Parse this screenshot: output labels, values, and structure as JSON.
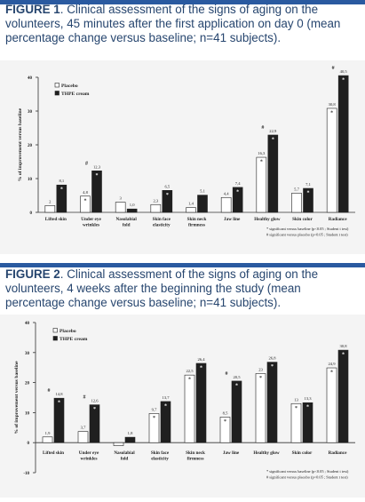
{
  "figures": [
    {
      "label": "FIGURE 1",
      "title": ". Clinical assessment of the signs of aging on the volunteers, 45 minutes after the first application on day 0 (mean percentage change versus baseline; n=41 subjects).",
      "footnotes": [
        "* significant versus baseline (p<0.05 ; Student t test)",
        "# significant versus placebo (p<0.05 ; Student t test)"
      ]
    },
    {
      "label": "FIGURE 2",
      "title": ". Clinical assessment of the signs of aging on the volunteers, 4 weeks after the beginning the study (mean percentage change versus baseline; n=41 subjects).",
      "footnotes": [
        "* significant versus baseline (p<0.05 ; Student t test)",
        "# significant versus placebo (p<0.05 ; Student t test)"
      ]
    }
  ],
  "chart_data": [
    {
      "type": "bar",
      "ylabel": "% of improvement versus baseline",
      "ylim": [
        0,
        40
      ],
      "yticks": [
        0,
        10,
        20,
        30,
        40
      ],
      "categories": [
        "Lifted skin",
        "Under eye wrinkles",
        "Nasolabial fold",
        "Skin face elasticity",
        "Skin neck firmness",
        "Jaw line",
        "Healthy glow",
        "Skin color",
        "Radiance"
      ],
      "series": [
        {
          "name": "Placebo",
          "color": "#ffffff",
          "values": [
            2,
            4.8,
            3,
            2.3,
            1.4,
            4.4,
            16.3,
            5.7,
            30.8
          ],
          "labels": [
            "2",
            "4,8",
            "3",
            "2,3",
            "1,4",
            "4,4",
            "16,3",
            "5,7",
            "30,8"
          ]
        },
        {
          "name": "THPE cream",
          "color": "#1f1f1f",
          "values": [
            8.1,
            12.3,
            1,
            6.5,
            5.1,
            7.4,
            22.9,
            7.1,
            40.5
          ],
          "labels": [
            "8,1",
            "12,3",
            "1,0",
            "6,5",
            "5,1",
            "7,4",
            "22,9",
            "7,1",
            "40,5"
          ]
        }
      ],
      "significance_placebo": [
        "",
        "*",
        "",
        "",
        "",
        "",
        "*",
        "",
        "*"
      ],
      "significance_thpe": [
        "*",
        "*",
        "",
        "*",
        "",
        "*",
        "*",
        "*",
        "*"
      ],
      "hash": [
        "",
        "#",
        "",
        "",
        "",
        "",
        "#",
        "",
        "#"
      ],
      "legend": "top-left",
      "grid": false
    },
    {
      "type": "bar",
      "ylabel": "% of improvement versus baseline",
      "ylim": [
        -10,
        40
      ],
      "yticks": [
        -10,
        0,
        10,
        20,
        30,
        40
      ],
      "categories": [
        "Lifted skin",
        "Under eye wrinkles",
        "Nasolabial fold",
        "Skin face elasticity",
        "Skin neck firmness",
        "Jaw line",
        "Healthy glow",
        "Skin color",
        "Radiance"
      ],
      "series": [
        {
          "name": "Placebo",
          "color": "#ffffff",
          "values": [
            1.9,
            3.7,
            -1,
            9.7,
            22.5,
            8.5,
            23,
            13,
            24.9
          ],
          "labels": [
            "1,9",
            "3,7",
            "",
            "9,7",
            "22,5",
            "8,5",
            "23",
            "13",
            "24,9"
          ]
        },
        {
          "name": "THPE cream",
          "color": "#1f1f1f",
          "values": [
            14.8,
            12.6,
            1.8,
            13.7,
            26.4,
            20.5,
            26.8,
            13.3,
            30.8
          ],
          "labels": [
            "14,8",
            "12,6",
            "1,8",
            "13,7",
            "26,4",
            "20,5",
            "26,8",
            "13,3",
            "30,8"
          ]
        }
      ],
      "significance_placebo": [
        "",
        "",
        "",
        "*",
        "*",
        "*",
        "*",
        "*",
        "*"
      ],
      "significance_thpe": [
        "*",
        "*",
        "",
        "*",
        "*",
        "*",
        "*",
        "*",
        "*"
      ],
      "hash": [
        "#",
        "#",
        "",
        "",
        "",
        "#",
        "",
        "",
        ""
      ],
      "legend": "top-left",
      "grid": false
    }
  ]
}
